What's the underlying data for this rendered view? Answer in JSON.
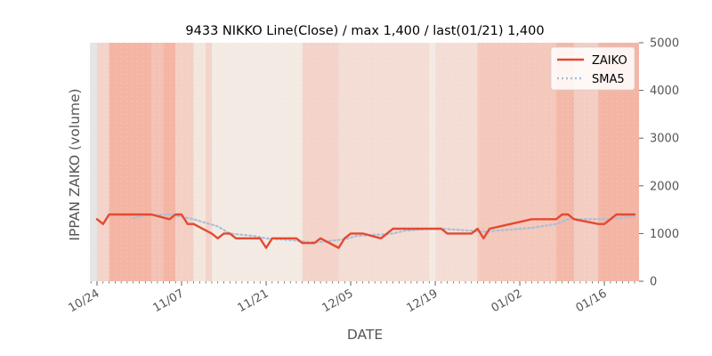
{
  "chart_data": {
    "type": "line",
    "title": "9433 NIKKO Line(Close) / max 1,400 / last(01/21) 1,400",
    "xlabel": "DATE",
    "ylabel": "IPPAN ZAIKO (volume)",
    "ylim": [
      0,
      5000
    ],
    "yticks": [
      "0",
      "1000",
      "2000",
      "3000",
      "4000",
      "5000"
    ],
    "xticks": [
      {
        "label": "10/24",
        "date": "2018-10-24"
      },
      {
        "label": "11/07",
        "date": "2018-11-07"
      },
      {
        "label": "11/21",
        "date": "2018-11-21"
      },
      {
        "label": "12/05",
        "date": "2018-12-05"
      },
      {
        "label": "12/19",
        "date": "2018-12-19"
      },
      {
        "label": "01/02",
        "date": "2019-01-02"
      },
      {
        "label": "01/16",
        "date": "2019-01-16"
      }
    ],
    "xlim": [
      "2018-10-24",
      "2019-01-21"
    ],
    "grid": false,
    "legend_position": "top-right",
    "series": [
      {
        "name": "ZAIKO",
        "color": "#e24a33",
        "style": "solid",
        "dates": [
          "2018-10-24",
          "2018-10-25",
          "2018-10-26",
          "2018-10-29",
          "2018-10-30",
          "2018-10-31",
          "2018-11-01",
          "2018-11-02",
          "2018-11-05",
          "2018-11-06",
          "2018-11-07",
          "2018-11-08",
          "2018-11-09",
          "2018-11-12",
          "2018-11-13",
          "2018-11-14",
          "2018-11-15",
          "2018-11-16",
          "2018-11-19",
          "2018-11-20",
          "2018-11-21",
          "2018-11-22",
          "2018-11-26",
          "2018-11-27",
          "2018-11-28",
          "2018-11-29",
          "2018-11-30",
          "2018-12-03",
          "2018-12-04",
          "2018-12-05",
          "2018-12-06",
          "2018-12-07",
          "2018-12-10",
          "2018-12-11",
          "2018-12-12",
          "2018-12-13",
          "2018-12-14",
          "2018-12-17",
          "2018-12-18",
          "2018-12-19",
          "2018-12-20",
          "2018-12-21",
          "2018-12-25",
          "2018-12-26",
          "2018-12-27",
          "2018-12-28",
          "2019-01-04",
          "2019-01-07",
          "2019-01-08",
          "2019-01-09",
          "2019-01-10",
          "2019-01-11",
          "2019-01-15",
          "2019-01-16",
          "2019-01-17",
          "2019-01-18",
          "2019-01-21"
        ],
        "values": [
          1300,
          1200,
          1400,
          1400,
          1400,
          1400,
          1400,
          1400,
          1300,
          1400,
          1400,
          1200,
          1200,
          1000,
          900,
          1000,
          1000,
          900,
          900,
          900,
          700,
          900,
          900,
          800,
          800,
          800,
          900,
          700,
          900,
          1000,
          1000,
          1000,
          900,
          1000,
          1100,
          1100,
          1100,
          1100,
          1100,
          1100,
          1100,
          1000,
          1000,
          1100,
          900,
          1100,
          1300,
          1300,
          1300,
          1400,
          1400,
          1300,
          1200,
          1200,
          1300,
          1400,
          1400
        ]
      },
      {
        "name": "SMA5",
        "color": "#a9bfd8",
        "style": "dotted",
        "dates": [
          "2018-10-30",
          "2018-11-01",
          "2018-11-05",
          "2018-11-07",
          "2018-11-09",
          "2018-11-13",
          "2018-11-15",
          "2018-11-19",
          "2018-11-21",
          "2018-11-26",
          "2018-11-28",
          "2018-11-30",
          "2018-12-04",
          "2018-12-06",
          "2018-12-10",
          "2018-12-12",
          "2018-12-14",
          "2018-12-18",
          "2018-12-20",
          "2018-12-25",
          "2018-12-27",
          "2019-01-04",
          "2019-01-08",
          "2019-01-10",
          "2019-01-15",
          "2019-01-17",
          "2019-01-21"
        ],
        "values": [
          1320,
          1380,
          1400,
          1350,
          1300,
          1150,
          1000,
          950,
          900,
          850,
          820,
          820,
          880,
          950,
          980,
          1000,
          1060,
          1100,
          1100,
          1060,
          1040,
          1120,
          1200,
          1300,
          1300,
          1300,
          1360
        ]
      }
    ],
    "background_bands": [
      {
        "start": "2018-10-23",
        "end": "2018-10-24",
        "color": "#e5e5e5"
      },
      {
        "start": "2018-10-24",
        "end": "2018-10-26",
        "color": "#f4d3ca"
      },
      {
        "start": "2018-10-26",
        "end": "2018-11-02",
        "color": "#f4b5a5"
      },
      {
        "start": "2018-11-02",
        "end": "2018-11-04",
        "color": "#f4c1b5"
      },
      {
        "start": "2018-11-04",
        "end": "2018-11-06",
        "color": "#f4b5a5"
      },
      {
        "start": "2018-11-06",
        "end": "2018-11-09",
        "color": "#f4cfc4"
      },
      {
        "start": "2018-11-09",
        "end": "2018-11-11",
        "color": "#f3e7dd"
      },
      {
        "start": "2018-11-11",
        "end": "2018-11-12",
        "color": "#f4d3ca"
      },
      {
        "start": "2018-11-12",
        "end": "2018-11-27",
        "color": "#f3ebe3"
      },
      {
        "start": "2018-11-27",
        "end": "2018-12-03",
        "color": "#f4d3ca"
      },
      {
        "start": "2018-12-03",
        "end": "2018-12-18",
        "color": "#f4ddd4"
      },
      {
        "start": "2018-12-18",
        "end": "2018-12-19",
        "color": "#f3ebe3"
      },
      {
        "start": "2018-12-19",
        "end": "2018-12-26",
        "color": "#f4ddd4"
      },
      {
        "start": "2018-12-26",
        "end": "2019-01-08",
        "color": "#f4c8bb"
      },
      {
        "start": "2019-01-08",
        "end": "2019-01-11",
        "color": "#f4b8a8"
      },
      {
        "start": "2019-01-11",
        "end": "2019-01-15",
        "color": "#f4cdc2"
      },
      {
        "start": "2019-01-15",
        "end": "2019-01-23",
        "color": "#f4b5a5"
      }
    ]
  }
}
